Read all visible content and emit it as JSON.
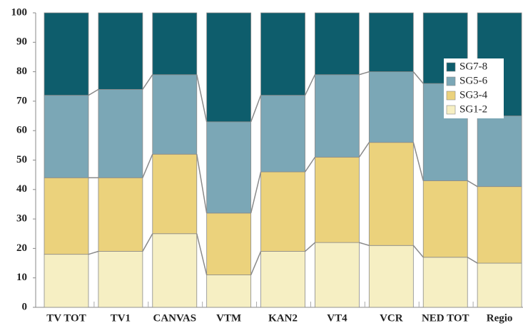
{
  "chart_data": {
    "type": "stacked_bar",
    "categories": [
      "TV TOT",
      "TV1",
      "CANVAS",
      "VTM",
      "KAN2",
      "VT4",
      "VCR",
      "NED TOT",
      "Regio"
    ],
    "series": [
      {
        "name": "SG1-2",
        "color": "#f6efc3",
        "values": [
          18,
          19,
          25,
          11,
          19,
          22,
          21,
          17,
          15
        ]
      },
      {
        "name": "SG3-4",
        "color": "#ebd27c",
        "values": [
          26,
          25,
          27,
          21,
          27,
          29,
          35,
          26,
          26
        ]
      },
      {
        "name": "SG5-6",
        "color": "#7ba7b6",
        "values": [
          28,
          30,
          27,
          31,
          26,
          28,
          24,
          33,
          24
        ]
      },
      {
        "name": "SG7-8",
        "color": "#0e5d6c",
        "values": [
          28,
          26,
          21,
          37,
          28,
          21,
          20,
          24,
          35
        ]
      }
    ],
    "ylim": [
      0,
      100
    ],
    "yticks": [
      0,
      10,
      20,
      30,
      40,
      50,
      60,
      70,
      80,
      90,
      100
    ],
    "legend": "upper right"
  }
}
